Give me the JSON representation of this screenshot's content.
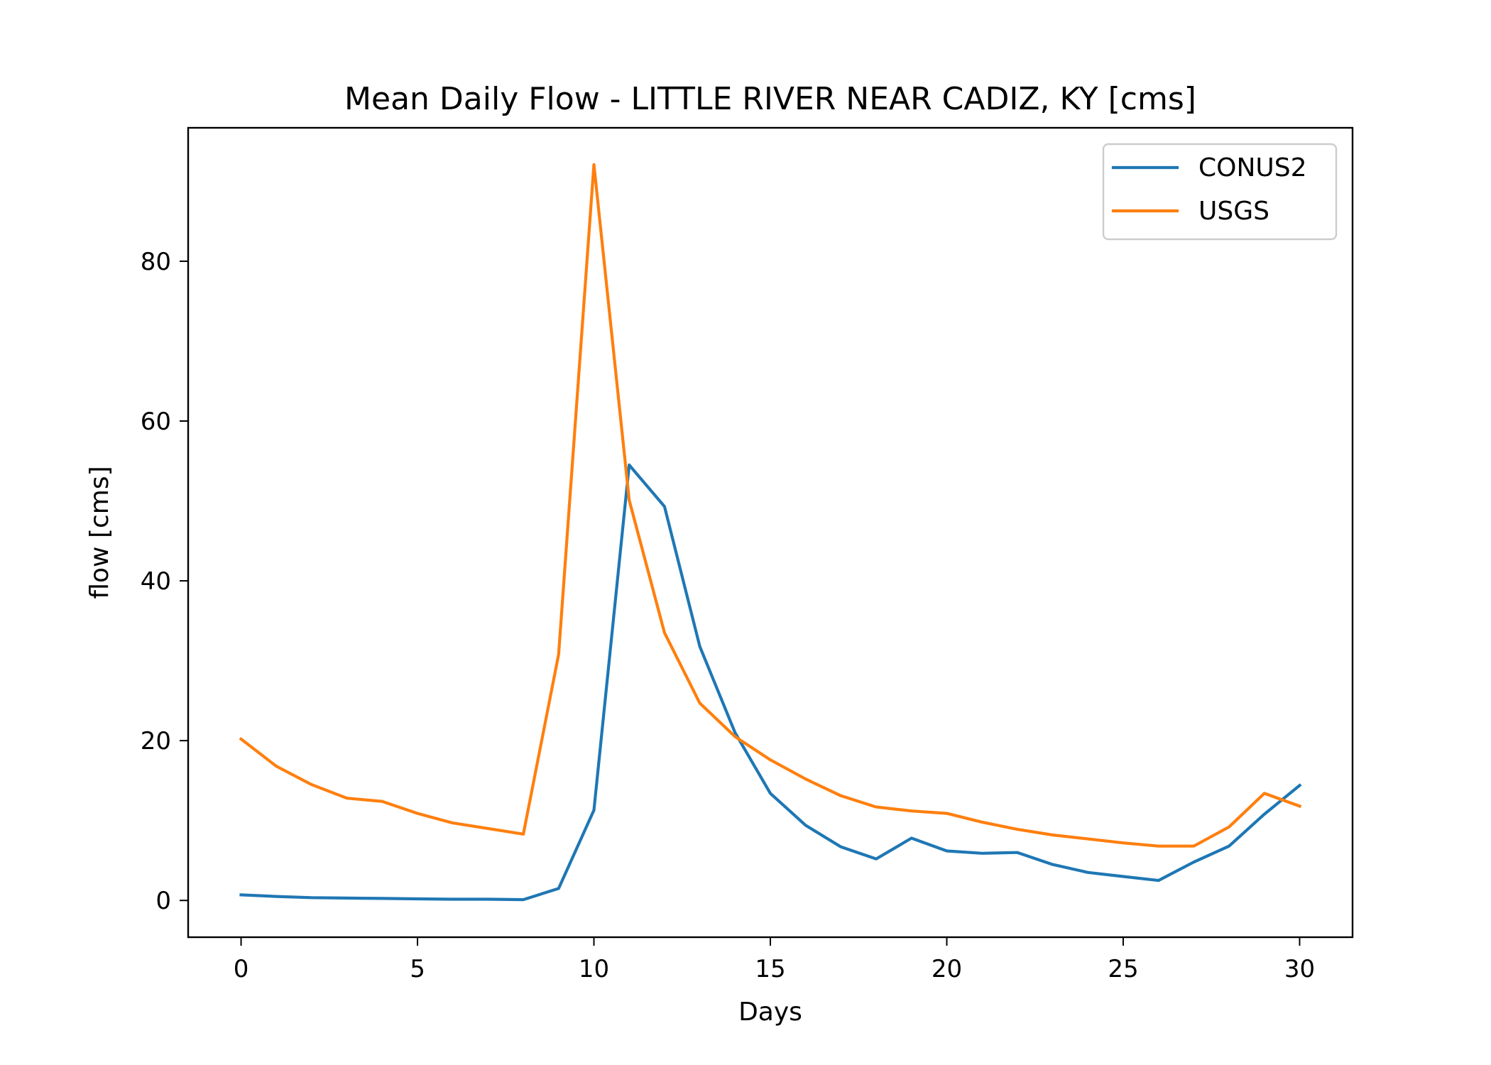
{
  "chart_data": {
    "type": "line",
    "title": "Mean Daily Flow - LITTLE RIVER NEAR CADIZ, KY [cms]",
    "xlabel": "Days",
    "ylabel": "flow [cms]",
    "xlim": [
      -1.5,
      31.5
    ],
    "ylim": [
      -4.6,
      96.7
    ],
    "xticks": [
      0,
      5,
      10,
      15,
      20,
      25,
      30
    ],
    "yticks": [
      0,
      20,
      40,
      60,
      80
    ],
    "grid": false,
    "legend_position": "upper right",
    "x": [
      0,
      1,
      2,
      3,
      4,
      5,
      6,
      7,
      8,
      9,
      10,
      11,
      12,
      13,
      14,
      15,
      16,
      17,
      18,
      19,
      20,
      21,
      22,
      23,
      24,
      25,
      26,
      27,
      28,
      29,
      30
    ],
    "series": [
      {
        "name": "CONUS2",
        "color": "#1f77b4",
        "values": [
          0.7,
          0.5,
          0.35,
          0.3,
          0.25,
          0.2,
          0.15,
          0.15,
          0.1,
          1.5,
          11.3,
          54.5,
          49.3,
          31.8,
          21.0,
          13.4,
          9.4,
          6.7,
          5.2,
          7.8,
          6.2,
          5.9,
          6.0,
          4.5,
          3.5,
          3.0,
          2.5,
          4.8,
          6.8,
          10.8,
          14.4
        ]
      },
      {
        "name": "USGS",
        "color": "#ff7f0e",
        "values": [
          20.2,
          16.8,
          14.5,
          12.8,
          12.4,
          10.9,
          9.7,
          9.0,
          8.3,
          30.8,
          92.1,
          50.1,
          33.5,
          24.7,
          20.5,
          17.6,
          15.2,
          13.1,
          11.7,
          11.2,
          10.9,
          9.8,
          8.9,
          8.2,
          7.7,
          7.2,
          6.8,
          6.8,
          9.2,
          13.4,
          11.8
        ]
      }
    ]
  }
}
